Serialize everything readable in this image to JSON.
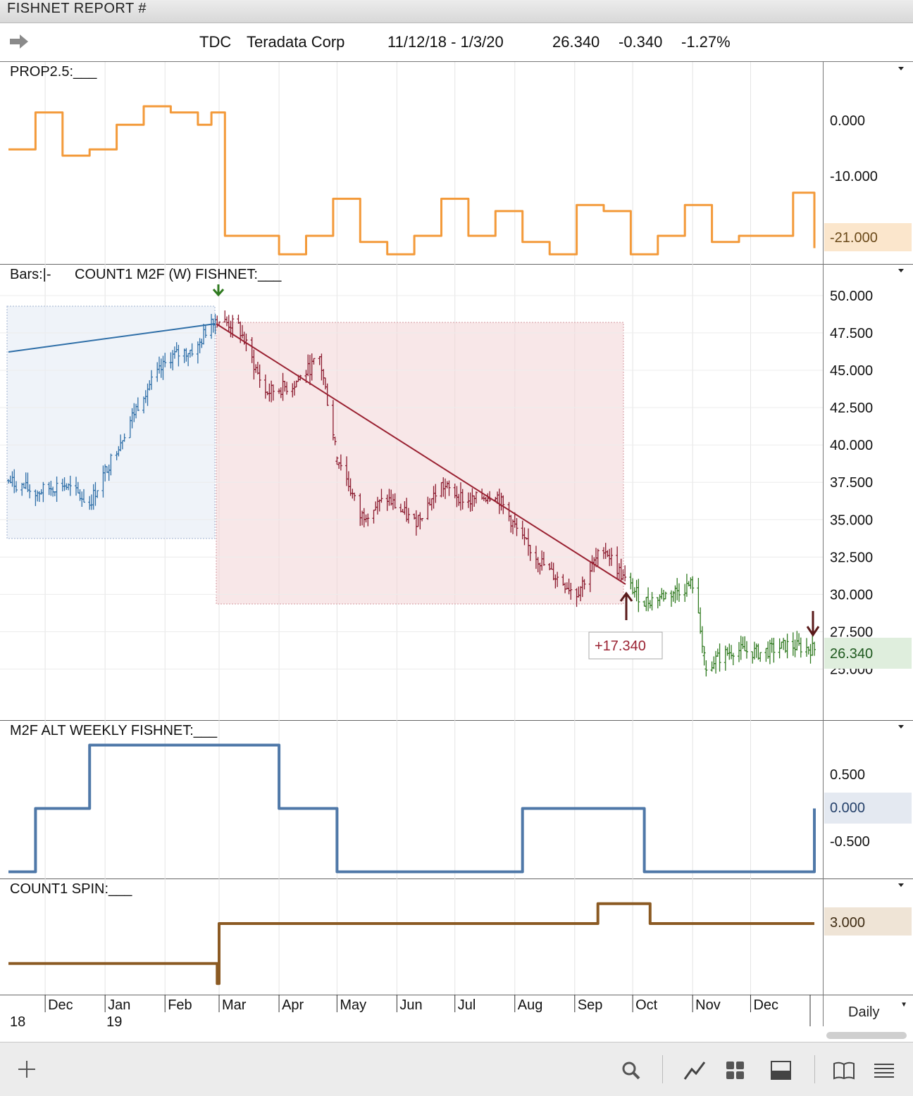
{
  "window": {
    "title": "FISHNET  REPORT #"
  },
  "header": {
    "symbol": "TDC",
    "name": "Teradata Corp",
    "date_range": "11/12/18 - 1/3/20",
    "last": "26.340",
    "change": "-0.340",
    "change_pct": "-1.27%"
  },
  "panels": {
    "prop": {
      "label": "PROP2.5:___",
      "current": "-21.000",
      "ticks": [
        "0.000",
        "-10.000"
      ]
    },
    "price": {
      "label_bars": "Bars:|-",
      "label_study": "COUNT1 M2F (W) FISHNET:___",
      "current": "26.340",
      "ticks": [
        "50.000",
        "47.500",
        "45.000",
        "42.500",
        "40.000",
        "37.500",
        "35.000",
        "32.500",
        "30.000",
        "27.500",
        "25.000"
      ],
      "trade_label": "+17.340"
    },
    "alt": {
      "label": "M2F ALT WEEKLY FISHNET:___",
      "current": "0.000",
      "ticks": [
        "0.500",
        "-0.500"
      ]
    },
    "spin": {
      "label": "COUNT1 SPIN:___",
      "current": "3.000"
    }
  },
  "xaxis": {
    "months": [
      "Dec",
      "Jan",
      "Feb",
      "Mar",
      "Apr",
      "May",
      "Jun",
      "Jul",
      "Aug",
      "Sep",
      "Oct",
      "Nov",
      "Dec"
    ],
    "years": [
      "18",
      "19"
    ]
  },
  "interval": {
    "selected": "Daily"
  },
  "colors": {
    "prop": "#f39a3a",
    "alt": "#4f78a8",
    "spin": "#8b5a23",
    "up": "#2f6fa8",
    "down": "#8b1a2e",
    "after": "#2f7a1f"
  },
  "chart_data": [
    {
      "type": "line",
      "series": [
        {
          "name": "PROP2.5",
          "x": [
            "2018-11-12",
            "2018-11-26",
            "2018-12-10",
            "2018-12-24",
            "2019-01-07",
            "2019-01-21",
            "2019-02-04",
            "2019-02-18",
            "2019-02-25",
            "2019-03-04",
            "2019-03-18",
            "2019-04-01",
            "2019-04-15",
            "2019-04-29",
            "2019-05-13",
            "2019-05-27",
            "2019-06-10",
            "2019-06-24",
            "2019-07-08",
            "2019-07-22",
            "2019-08-05",
            "2019-08-19",
            "2019-09-02",
            "2019-09-16",
            "2019-09-30",
            "2019-10-14",
            "2019-10-28",
            "2019-11-11",
            "2019-11-25",
            "2019-12-09",
            "2019-12-23",
            "2020-01-03"
          ],
          "values": [
            -5,
            1,
            -6,
            -5,
            -1,
            2,
            1,
            -1,
            1,
            -19,
            -19,
            -22,
            -19,
            -13,
            -20,
            -22,
            -19,
            -13,
            -19,
            -15,
            -20,
            -22,
            -14,
            -15,
            -22,
            -19,
            -14,
            -20,
            -19,
            -19,
            -12,
            -21
          ]
        }
      ],
      "ylim": [
        -23,
        6
      ],
      "current_label": "-21.000"
    },
    {
      "type": "bar",
      "series": [
        {
          "name": "TDC",
          "x": [
            "2018-11-12",
            "2018-11-26",
            "2018-12-10",
            "2018-12-24",
            "2019-01-07",
            "2019-01-21",
            "2019-02-04",
            "2019-02-18",
            "2019-02-25",
            "2019-03-11",
            "2019-03-25",
            "2019-04-08",
            "2019-04-22",
            "2019-05-01",
            "2019-05-13",
            "2019-05-27",
            "2019-06-10",
            "2019-06-24",
            "2019-07-08",
            "2019-07-22",
            "2019-08-05",
            "2019-08-19",
            "2019-09-02",
            "2019-09-16",
            "2019-09-27",
            "2019-10-07",
            "2019-10-21",
            "2019-11-01",
            "2019-11-08",
            "2019-11-22",
            "2019-12-06",
            "2019-12-20",
            "2020-01-03"
          ],
          "values": [
            37.6,
            36.8,
            37.4,
            36.1,
            39.8,
            43.5,
            45.9,
            46.5,
            48.5,
            47.9,
            43.5,
            44.0,
            45.8,
            39.5,
            35.2,
            36.4,
            34.8,
            37.3,
            36.2,
            36.8,
            33.6,
            31.5,
            30.1,
            33.2,
            30.9,
            29.5,
            30.1,
            30.7,
            25.3,
            26.3,
            26.1,
            26.6,
            26.34
          ]
        }
      ],
      "ylim": [
        23,
        51.5
      ],
      "current_label": "26.340",
      "trade": {
        "profit": "+17.340"
      }
    },
    {
      "type": "line",
      "series": [
        {
          "name": "M2F ALT WEEKLY FISHNET",
          "x": [
            "2018-11-12",
            "2018-11-26",
            "2018-12-24",
            "2019-04-01",
            "2019-05-01",
            "2019-08-05",
            "2019-10-07",
            "2020-01-03"
          ],
          "values": [
            -1,
            0,
            1,
            0,
            -1,
            0,
            -1,
            0
          ]
        }
      ],
      "ylim": [
        -1.05,
        1.05
      ],
      "current_label": "0.000"
    },
    {
      "type": "line",
      "series": [
        {
          "name": "COUNT1 SPIN",
          "x": [
            "2018-11-12",
            "2019-02-28",
            "2019-03-01",
            "2019-09-13",
            "2019-10-10",
            "2020-01-03"
          ],
          "values": [
            1,
            0,
            3,
            4,
            3,
            3
          ]
        }
      ],
      "ylim": [
        -0.1,
        4.2
      ],
      "current_label": "3.000"
    }
  ]
}
